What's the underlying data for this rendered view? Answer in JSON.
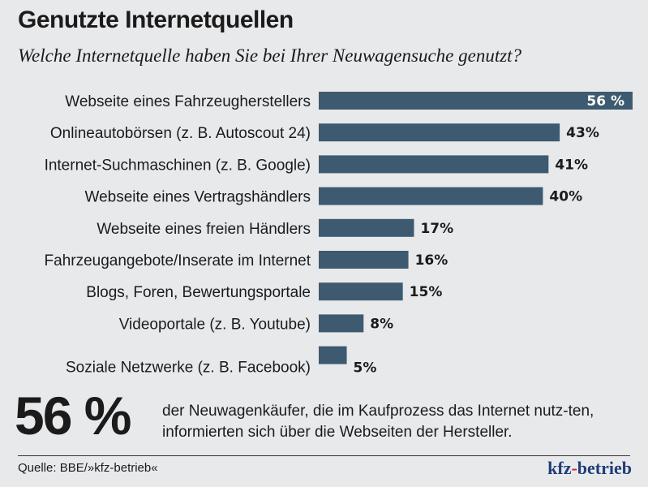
{
  "title": "Genutzte Internetquellen",
  "subtitle": "Welche Internetquelle haben Sie bei Ihrer Neuwagensuche genutzt?",
  "chart_data": {
    "type": "bar",
    "orientation": "horizontal",
    "categories": [
      "Webseite eines Fahrzeugherstellers",
      "Onlineautobörsen (z. B. Autoscout 24)",
      "Internet-Suchmaschinen (z. B. Google)",
      "Webseite eines Vertragshändlers",
      "Webseite eines freien Händlers",
      "Fahrzeugangebote/Inserate im Internet",
      "Blogs, Foren, Bewertungsportale",
      "Videoportale (z. B. Youtube)",
      "Soziale Netzwerke (z. B. Facebook)"
    ],
    "values": [
      56,
      43,
      41,
      40,
      17,
      16,
      15,
      8,
      5
    ],
    "labels": [
      "56 %",
      "43%",
      "41%",
      "40%",
      "17%",
      "16%",
      "15%",
      "8%",
      "5%"
    ],
    "unit": "%",
    "bar_color": "#3d5a70",
    "grid": false
  },
  "highlight": {
    "value": "56 %",
    "text": "der Neuwagenkäufer, die im Kaufprozess das Internet nutz-ten, informierten sich über die Webseiten der Hersteller."
  },
  "source": "Quelle: BBE/»kfz-betrieb«",
  "logo": {
    "part1": "kfz",
    "dash": "-",
    "part2": "betrieb"
  }
}
